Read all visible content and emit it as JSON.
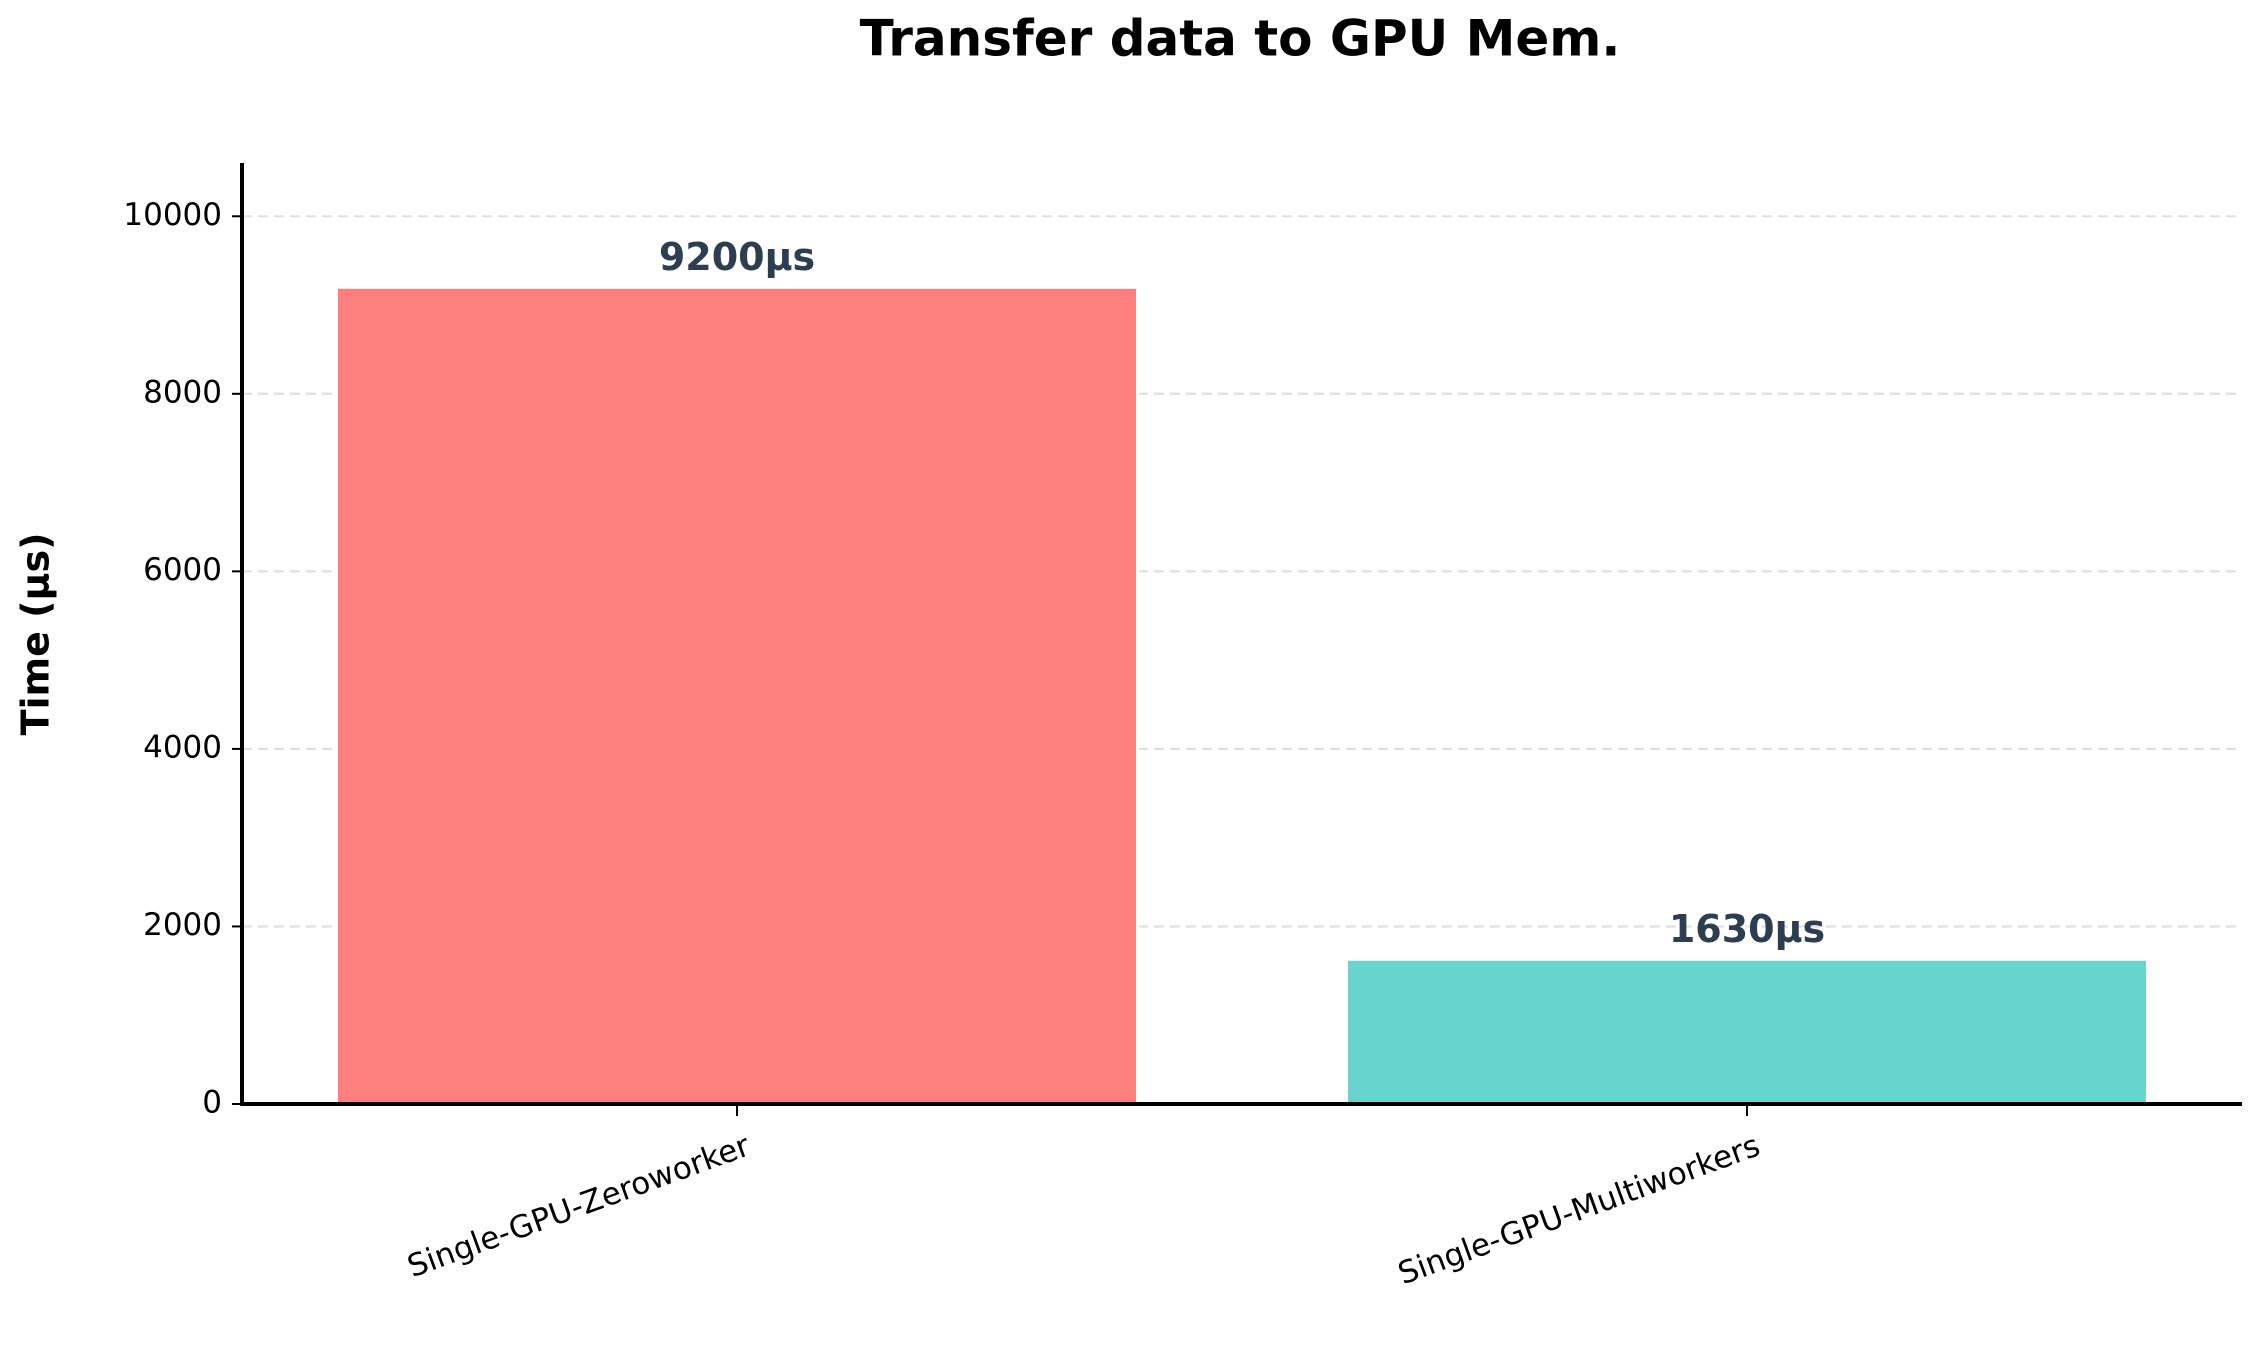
{
  "chart_data": {
    "type": "bar",
    "title": "Transfer data to GPU Mem.",
    "y_label": "Time (μs)",
    "categories": [
      "Single-GPU-Zeroworker",
      "Single-GPU-Multiworkers"
    ],
    "values": [
      9200,
      1630
    ],
    "value_labels": [
      "9200μs",
      "1630μs"
    ],
    "colors": [
      "#ff7f7f",
      "#69d3cd"
    ],
    "ylim": [
      0,
      10600
    ],
    "yticks": [
      0,
      2000,
      4000,
      6000,
      8000,
      10000
    ],
    "grid": true
  }
}
